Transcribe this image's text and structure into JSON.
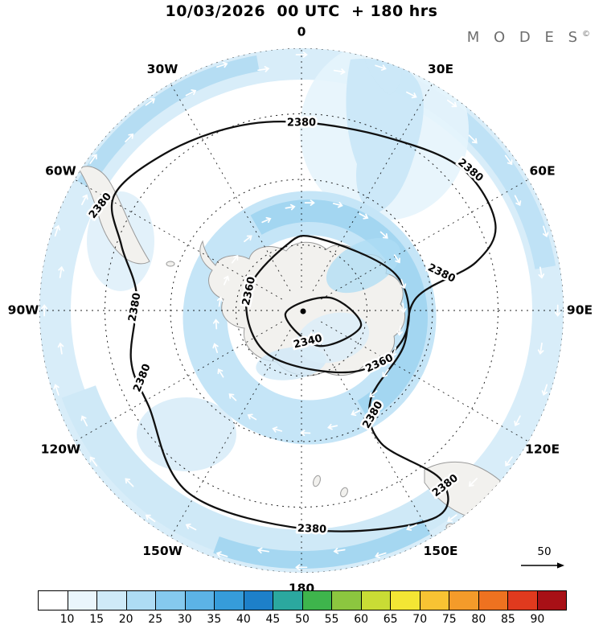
{
  "header": {
    "title": "10/03/2026  00 UTC  + 180 hrs",
    "logo_text": "M O D E S",
    "logo_mark": "©"
  },
  "chart_data": {
    "type": "contour-map",
    "projection": "south-polar-stereographic",
    "title": "10/03/2026  00 UTC  + 180 hrs",
    "longitude_labels": [
      "0",
      "30E",
      "60E",
      "90E",
      "120E",
      "150E",
      "180",
      "150W",
      "120W",
      "90W",
      "60W",
      "30W"
    ],
    "contour_values": [
      2340,
      2360,
      2380
    ],
    "contour_interval": 20,
    "contour_labels": [
      "2380",
      "2380",
      "2380",
      "2380",
      "2380",
      "2380",
      "2380",
      "2380",
      "2380",
      "2360",
      "2360",
      "2340"
    ],
    "shading_legend": "colorbar values 10-90 (blues through reds), light blue shading on map spans roughly 10-30",
    "colorbar": {
      "tick_labels": [
        "10",
        "15",
        "20",
        "25",
        "30",
        "35",
        "40",
        "45",
        "50",
        "55",
        "60",
        "65",
        "70",
        "75",
        "80",
        "85",
        "90"
      ],
      "colors": [
        "#ffffff",
        "#eaf6fc",
        "#cfeaf8",
        "#aedcf4",
        "#85c9ee",
        "#5cb3e6",
        "#369cda",
        "#1d80c9",
        "#2ba89f",
        "#3eb54c",
        "#8cc63f",
        "#c9dc35",
        "#f3e634",
        "#f8c333",
        "#f49b2a",
        "#ee7220",
        "#e03a1e",
        "#a81016"
      ]
    },
    "reference_vector": {
      "label": "50"
    }
  }
}
